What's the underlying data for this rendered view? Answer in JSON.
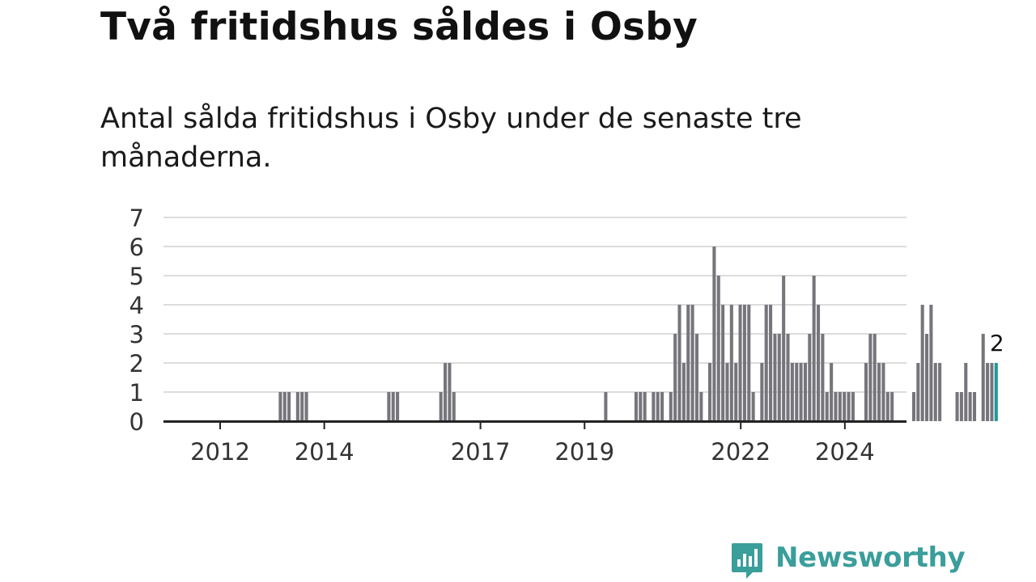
{
  "header": {
    "title": "Två fritidshus såldes i Osby",
    "subtitle": "Antal sålda fritidshus i Osby under de senaste tre månaderna."
  },
  "brand": {
    "name": "Newsworthy",
    "icon": "newsworthy-logo-icon",
    "color": "#3a9e9b"
  },
  "chart_data": {
    "type": "bar",
    "title": "",
    "xlabel": "",
    "ylabel": "",
    "ylim": [
      0,
      7
    ],
    "yticks": [
      "0",
      "1",
      "2",
      "3",
      "4",
      "5",
      "6",
      "7"
    ],
    "xticks": [
      {
        "label": "2012",
        "year": 2012
      },
      {
        "label": "2014",
        "year": 2014
      },
      {
        "label": "2017",
        "year": 2017
      },
      {
        "label": "2019",
        "year": 2019
      },
      {
        "label": "2022",
        "year": 2022
      },
      {
        "label": "2024",
        "year": 2024
      }
    ],
    "x_start": "2011-01",
    "period": "month",
    "values": [
      0,
      0,
      0,
      0,
      0,
      0,
      0,
      0,
      0,
      0,
      0,
      0,
      0,
      0,
      0,
      0,
      0,
      0,
      0,
      0,
      0,
      0,
      0,
      0,
      0,
      0,
      1,
      1,
      1,
      0,
      1,
      1,
      1,
      0,
      0,
      0,
      0,
      0,
      0,
      0,
      0,
      0,
      0,
      0,
      0,
      0,
      0,
      0,
      0,
      0,
      0,
      1,
      1,
      1,
      0,
      0,
      0,
      0,
      0,
      0,
      0,
      0,
      0,
      1,
      2,
      2,
      1,
      0,
      0,
      0,
      0,
      0,
      0,
      0,
      0,
      0,
      0,
      0,
      0,
      0,
      0,
      0,
      0,
      0,
      0,
      0,
      0,
      0,
      0,
      0,
      0,
      0,
      0,
      0,
      0,
      0,
      0,
      0,
      0,
      0,
      0,
      1,
      0,
      0,
      0,
      0,
      0,
      0,
      1,
      1,
      1,
      0,
      1,
      1,
      1,
      0,
      1,
      3,
      4,
      2,
      4,
      4,
      3,
      1,
      0,
      2,
      6,
      5,
      4,
      2,
      4,
      2,
      4,
      4,
      4,
      1,
      0,
      2,
      4,
      4,
      3,
      3,
      5,
      3,
      2,
      2,
      2,
      2,
      3,
      5,
      4,
      3,
      1,
      2,
      1,
      1,
      1,
      1,
      1,
      0,
      0,
      2,
      3,
      3,
      2,
      2,
      1,
      1,
      0,
      0,
      0,
      0,
      1,
      2,
      4,
      3,
      4,
      2,
      2,
      0,
      0,
      0,
      1,
      1,
      2,
      1,
      1,
      0,
      3,
      2,
      2,
      2
    ],
    "highlight": {
      "index": 191,
      "value": 2,
      "label": "2"
    },
    "colors": {
      "bar": "#77757c",
      "highlight": "#1a9a9c",
      "grid": "#dcdcdc",
      "axis": "#222222"
    },
    "grid": true
  }
}
